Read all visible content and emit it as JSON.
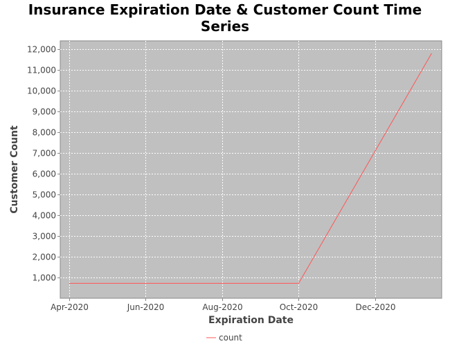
{
  "chart_data": {
    "type": "line",
    "title_line1": "Insurance Expiration Date & Customer Count Time",
    "title_line2": "Series",
    "xlabel": "Expiration Date",
    "ylabel": "Customer Count",
    "x_axis_type": "date",
    "xlim": [
      "2020-03-25",
      "2021-01-23"
    ],
    "ylim": [
      0,
      12400
    ],
    "x_ticks": [
      {
        "date": "2020-04-01",
        "label": "Apr-2020"
      },
      {
        "date": "2020-06-01",
        "label": "Jun-2020"
      },
      {
        "date": "2020-08-01",
        "label": "Aug-2020"
      },
      {
        "date": "2020-10-01",
        "label": "Oct-2020"
      },
      {
        "date": "2020-12-01",
        "label": "Dec-2020"
      }
    ],
    "y_ticks": [
      {
        "value": 1000,
        "label": "1,000"
      },
      {
        "value": 2000,
        "label": "2,000"
      },
      {
        "value": 3000,
        "label": "3,000"
      },
      {
        "value": 4000,
        "label": "4,000"
      },
      {
        "value": 5000,
        "label": "5,000"
      },
      {
        "value": 6000,
        "label": "6,000"
      },
      {
        "value": 7000,
        "label": "7,000"
      },
      {
        "value": 8000,
        "label": "8,000"
      },
      {
        "value": 9000,
        "label": "9,000"
      },
      {
        "value": 10000,
        "label": "10,000"
      },
      {
        "value": 11000,
        "label": "11,000"
      },
      {
        "value": 12000,
        "label": "12,000"
      }
    ],
    "grid": true,
    "legend_position": "bottom",
    "plot_background": "#c0c0c0",
    "series": [
      {
        "name": "count",
        "color": "#ff5555",
        "points": [
          {
            "x": "2020-04-01",
            "y": 720
          },
          {
            "x": "2020-10-01",
            "y": 720
          },
          {
            "x": "2021-01-15",
            "y": 11800
          }
        ]
      }
    ]
  }
}
